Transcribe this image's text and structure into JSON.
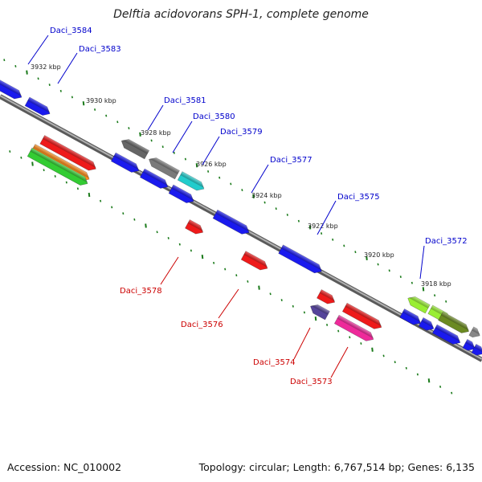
{
  "title": "Delftia acidovorans SPH-1, complete genome",
  "footer": {
    "accession": "Accession: NC_010002",
    "topology": "Topology: circular; Length: 6,767,514 bp; Genes: 6,135"
  },
  "colors": {
    "backbone": "#8a8a8a",
    "tick": "#1a7a1a",
    "label_top": "#0000cc",
    "label_bottom": "#cc0000"
  },
  "kbp_ticks": [
    "3932 kbp",
    "3930 kbp",
    "3928 kbp",
    "3926 kbp",
    "3924 kbp",
    "3922 kbp",
    "3920 kbp",
    "3918 kbp"
  ],
  "gene_labels_top": [
    "Daci_3584",
    "Daci_3583",
    "Daci_3581",
    "Daci_3580",
    "Daci_3579",
    "Daci_3577",
    "Daci_3575",
    "Daci_3572"
  ],
  "gene_labels_bottom": [
    "Daci_3578",
    "Daci_3576",
    "Daci_3574",
    "Daci_3573"
  ]
}
